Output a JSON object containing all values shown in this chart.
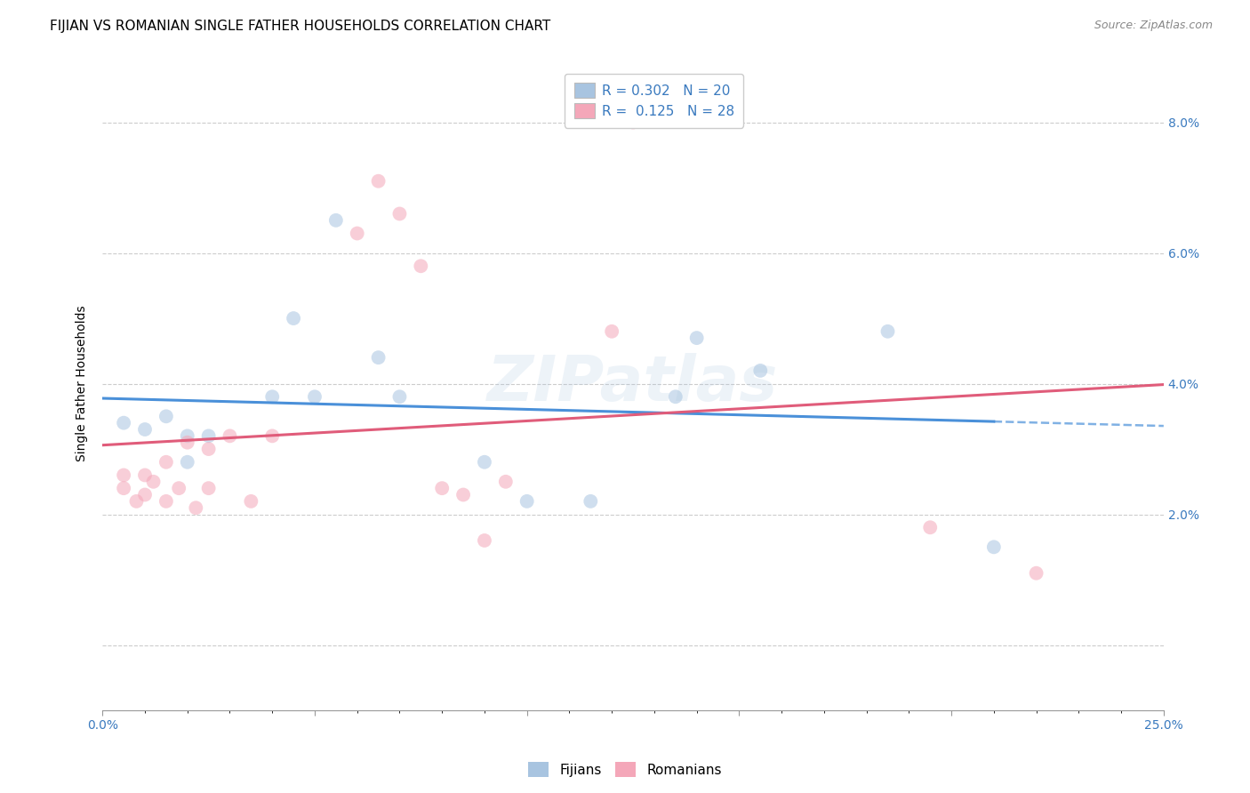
{
  "title": "FIJIAN VS ROMANIAN SINGLE FATHER HOUSEHOLDS CORRELATION CHART",
  "source": "Source: ZipAtlas.com",
  "ylabel": "Single Father Households",
  "xlabel": "",
  "xlim": [
    0.0,
    0.25
  ],
  "ylim": [
    -0.01,
    0.09
  ],
  "xticks": [
    0.0,
    0.05,
    0.1,
    0.15,
    0.2,
    0.25
  ],
  "xticklabels": [
    "0.0%",
    "",
    "",
    "",
    "",
    "25.0%"
  ],
  "yticks_right": [
    0.02,
    0.04,
    0.06,
    0.08
  ],
  "yticklabels_right": [
    "2.0%",
    "4.0%",
    "6.0%",
    "8.0%"
  ],
  "fijian_color": "#a8c4e0",
  "romanian_color": "#f4a7b9",
  "fijian_line_color": "#4a90d9",
  "romanian_line_color": "#e05c7a",
  "fijian_R": 0.302,
  "fijian_N": 20,
  "romanian_R": 0.125,
  "romanian_N": 28,
  "legend_label_fijian": "Fijians",
  "legend_label_romanian": "Romanians",
  "watermark": "ZIPatlas",
  "fijian_x": [
    0.005,
    0.01,
    0.015,
    0.02,
    0.02,
    0.025,
    0.04,
    0.045,
    0.05,
    0.055,
    0.065,
    0.07,
    0.09,
    0.1,
    0.115,
    0.135,
    0.14,
    0.155,
    0.185,
    0.21
  ],
  "fijian_y": [
    0.034,
    0.033,
    0.035,
    0.032,
    0.028,
    0.032,
    0.038,
    0.05,
    0.038,
    0.065,
    0.044,
    0.038,
    0.028,
    0.022,
    0.022,
    0.038,
    0.047,
    0.042,
    0.048,
    0.015
  ],
  "romanian_x": [
    0.005,
    0.005,
    0.008,
    0.01,
    0.01,
    0.012,
    0.015,
    0.015,
    0.018,
    0.02,
    0.022,
    0.025,
    0.025,
    0.03,
    0.035,
    0.04,
    0.06,
    0.065,
    0.07,
    0.075,
    0.08,
    0.085,
    0.09,
    0.095,
    0.12,
    0.125,
    0.195,
    0.22
  ],
  "romanian_y": [
    0.026,
    0.024,
    0.022,
    0.026,
    0.023,
    0.025,
    0.022,
    0.028,
    0.024,
    0.031,
    0.021,
    0.024,
    0.03,
    0.032,
    0.022,
    0.032,
    0.063,
    0.071,
    0.066,
    0.058,
    0.024,
    0.023,
    0.016,
    0.025,
    0.048,
    0.08,
    0.018,
    0.011
  ],
  "title_fontsize": 11,
  "source_fontsize": 9,
  "axis_label_fontsize": 10,
  "tick_fontsize": 10,
  "legend_fontsize": 11,
  "marker_size": 130,
  "alpha": 0.55,
  "grid_color": "#cccccc",
  "grid_linestyle": "--",
  "background_color": "#ffffff"
}
